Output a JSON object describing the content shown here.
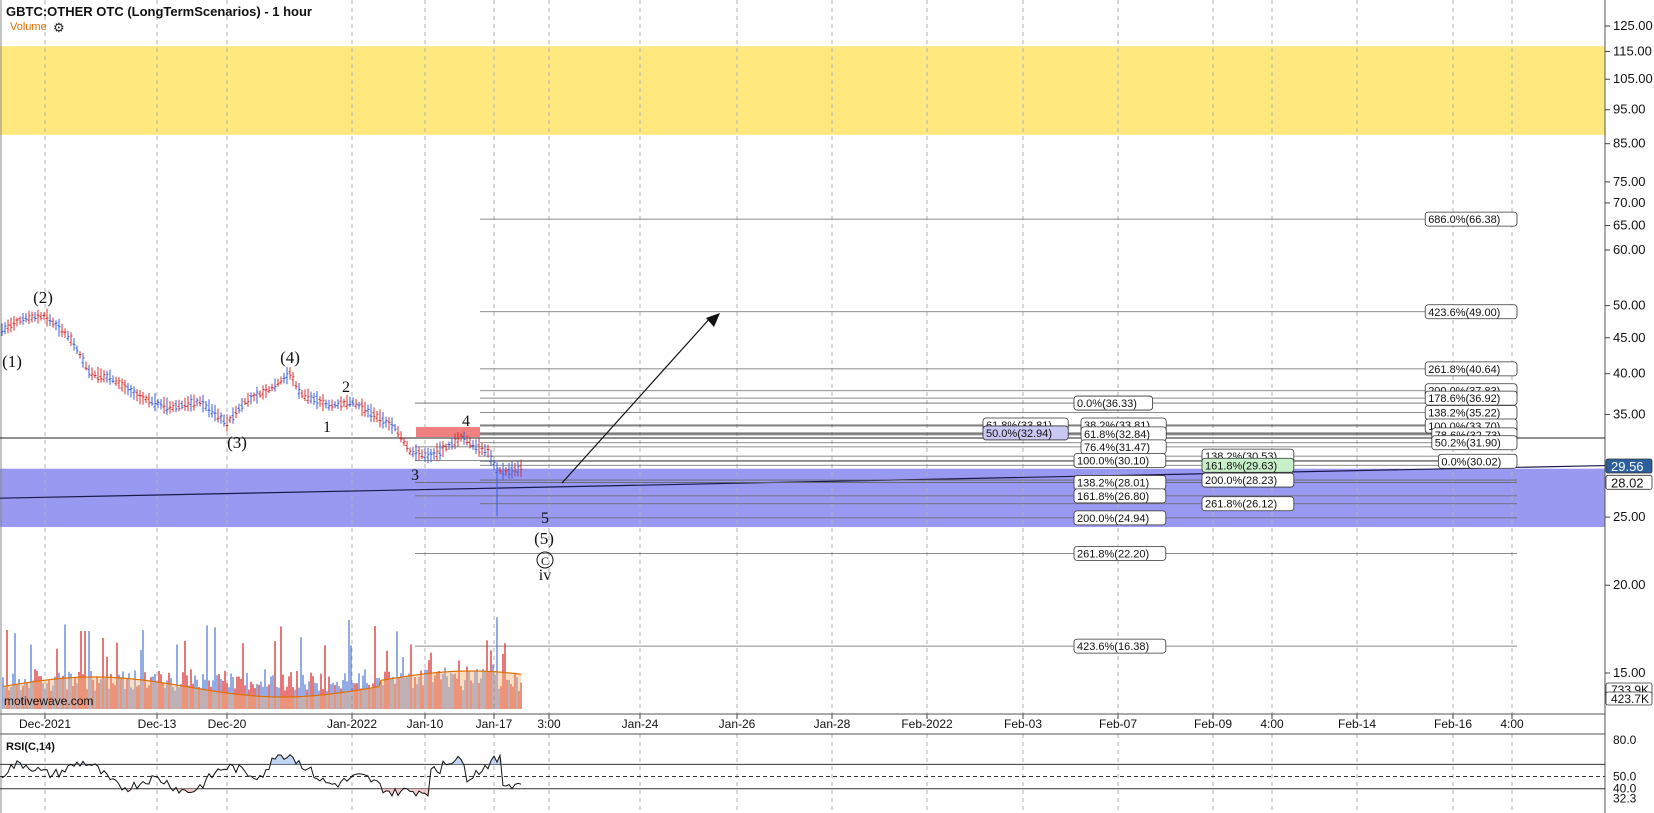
{
  "header": {
    "title": "GBTC:OTHER OTC (LongTermScenarios) - 1 hour",
    "volume_label": "Volume",
    "settings_icon": "gear-icon"
  },
  "watermark": "motivewave.com",
  "rsi_panel": {
    "title": "RSI(C,14)",
    "axis_labels": [
      "80.0",
      "50.0",
      "40.0",
      "32.3"
    ],
    "levels": [
      60,
      50,
      40
    ],
    "range": [
      20,
      85
    ]
  },
  "chart_data": {
    "type": "candlestick",
    "scale": "log",
    "ylim": [
      13,
      135
    ],
    "y_ticks": [
      125,
      115,
      105,
      95,
      85,
      75,
      70,
      65,
      60,
      50,
      45,
      40,
      35,
      25,
      20,
      15
    ],
    "x_tick_labels": [
      "Dec-2021",
      "Dec-13",
      "Dec-20",
      "Jan-2022",
      "Jan-10",
      "Jan-17",
      "3:00",
      "Jan-24",
      "Jan-26",
      "Jan-28",
      "Feb-2022",
      "Feb-03",
      "Feb-07",
      "Feb-09",
      "4:00",
      "Feb-14",
      "Feb-16",
      "4:00"
    ],
    "price_tags": [
      {
        "text": "29.56",
        "value": 29.56,
        "color": "#2c5f9e"
      },
      {
        "text": "28.02",
        "value": 28.02,
        "color": "#ffffff"
      }
    ],
    "volume_tags": [
      "733.9K",
      "423.7K"
    ],
    "zones": [
      {
        "name": "yellow-target-zone",
        "from": 87.5,
        "to": 117,
        "color": "#ffe97f"
      },
      {
        "name": "blue-support-zone",
        "from": 24.2,
        "to": 29.3,
        "color": "#9999f2"
      }
    ],
    "fib_labels": [
      {
        "text": "686.0%(66.38)",
        "value": 66.38
      },
      {
        "text": "423.6%(49.00)",
        "value": 49.0
      },
      {
        "text": "261.8%(40.64)",
        "value": 40.64
      },
      {
        "text": "200.0%(37.83)",
        "value": 37.83
      },
      {
        "text": "178.6%(36.92)",
        "value": 36.92
      },
      {
        "text": "0.0%(36.33)",
        "value": 36.33
      },
      {
        "text": "138.2%(35.22)",
        "value": 35.22
      },
      {
        "text": "61.8%(33.81)",
        "value": 33.81
      },
      {
        "text": "38.2%(33.81)",
        "value": 33.81
      },
      {
        "text": "100.0%(33.70)",
        "value": 33.7
      },
      {
        "text": "50.0%(32.94)",
        "value": 32.94
      },
      {
        "text": "61.8%(32.84)",
        "value": 32.84
      },
      {
        "text": "78.6%(32.73)",
        "value": 32.73
      },
      {
        "text": "50.2%(31.90)",
        "value": 31.9
      },
      {
        "text": "76.4%(31.47)",
        "value": 31.47
      },
      {
        "text": "138.2%(30.53)",
        "value": 30.53
      },
      {
        "text": "100.0%(30.10)",
        "value": 30.1
      },
      {
        "text": "0.0%(30.02)",
        "value": 30.02
      },
      {
        "text": "161.8%(29.63)",
        "value": 29.63
      },
      {
        "text": "200.0%(28.23)",
        "value": 28.23
      },
      {
        "text": "138.2%(28.01)",
        "value": 28.01
      },
      {
        "text": "161.8%(26.80)",
        "value": 26.8
      },
      {
        "text": "261.8%(26.12)",
        "value": 26.12
      },
      {
        "text": "200.0%(24.94)",
        "value": 24.94
      },
      {
        "text": "261.8%(22.20)",
        "value": 22.2
      },
      {
        "text": "423.6%(16.38)",
        "value": 16.38
      }
    ],
    "wave_labels": [
      "(1)",
      "(2)",
      "(3)",
      "(4)",
      "(5)",
      "1",
      "2",
      "3",
      "4",
      "5",
      "C",
      "iv"
    ],
    "highlight_colors": {
      "up": "#3a5fd9",
      "down": "#d83030",
      "volume_avg": "#e07000",
      "fib_highlight": "#c8f0c8"
    }
  }
}
